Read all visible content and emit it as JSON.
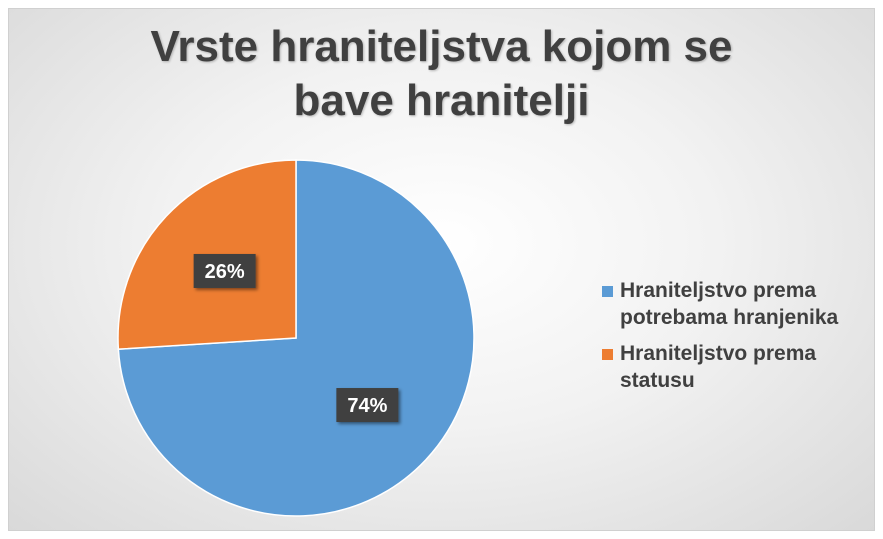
{
  "chart_data": {
    "type": "pie",
    "title_lines": [
      "Vrste hraniteljstva kojom se",
      "bave hranitelji"
    ],
    "slices": [
      {
        "label": "Hraniteljstvo prema potrebama hranjenika",
        "label_lines": [
          "Hraniteljstvo prema",
          "potrebama hranjenika"
        ],
        "value": 74,
        "data_label": "74%",
        "color": "#5b9bd5"
      },
      {
        "label": "Hraniteljstvo prema statusu",
        "label_lines": [
          "Hraniteljstvo prema",
          "statusu"
        ],
        "value": 26,
        "data_label": "26%",
        "color": "#ed7d31"
      }
    ],
    "legend_position": "right"
  }
}
